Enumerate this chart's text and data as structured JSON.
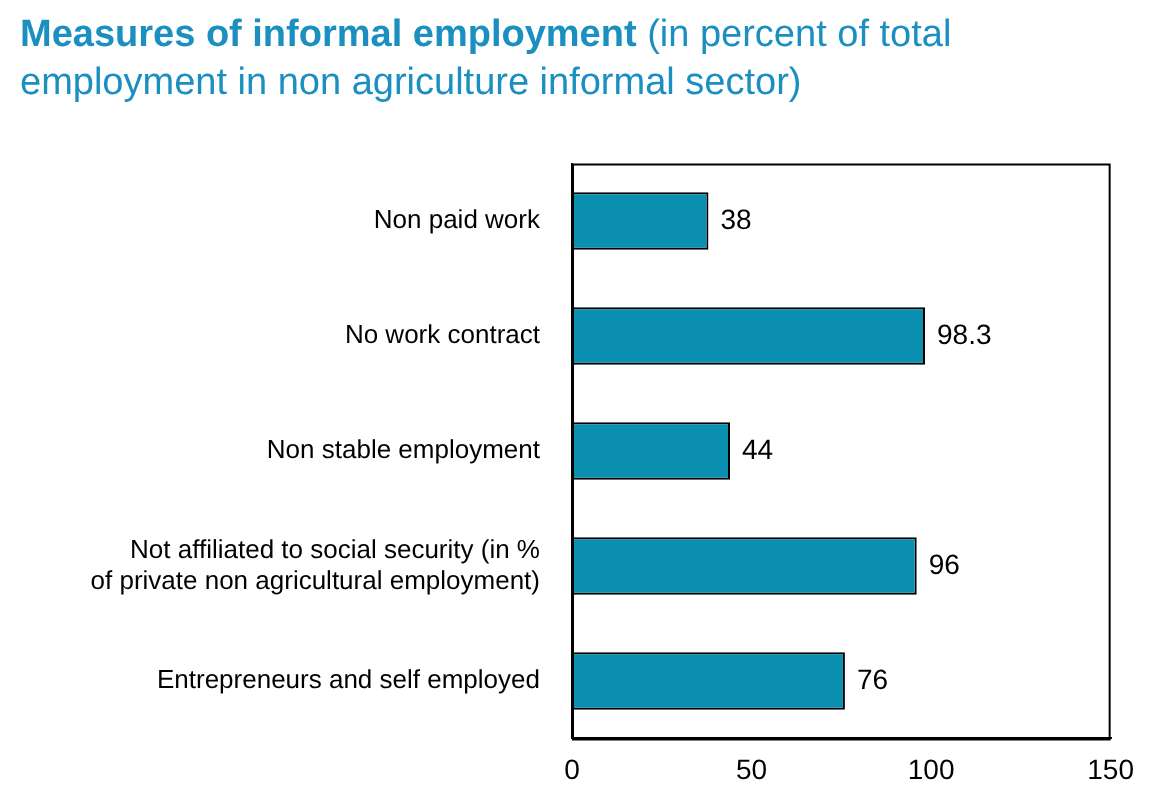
{
  "chart_data": {
    "type": "bar",
    "orientation": "horizontal",
    "title": "Measures of informal employment",
    "subtitle": "(in percent of total employment in non agriculture informal sector)",
    "categories": [
      "Non paid work",
      "No work contract",
      "Non stable employment",
      "Not affiliated to social security (in % of private non agricultural employment)",
      "Entrepreneurs and self employed"
    ],
    "values": [
      38,
      98.3,
      44,
      96,
      76
    ],
    "color": "#0a8fb0",
    "xlim": [
      0,
      150
    ],
    "xticks": [
      0,
      50,
      100,
      150
    ],
    "grid": false,
    "legend": false,
    "data_labels": true
  }
}
